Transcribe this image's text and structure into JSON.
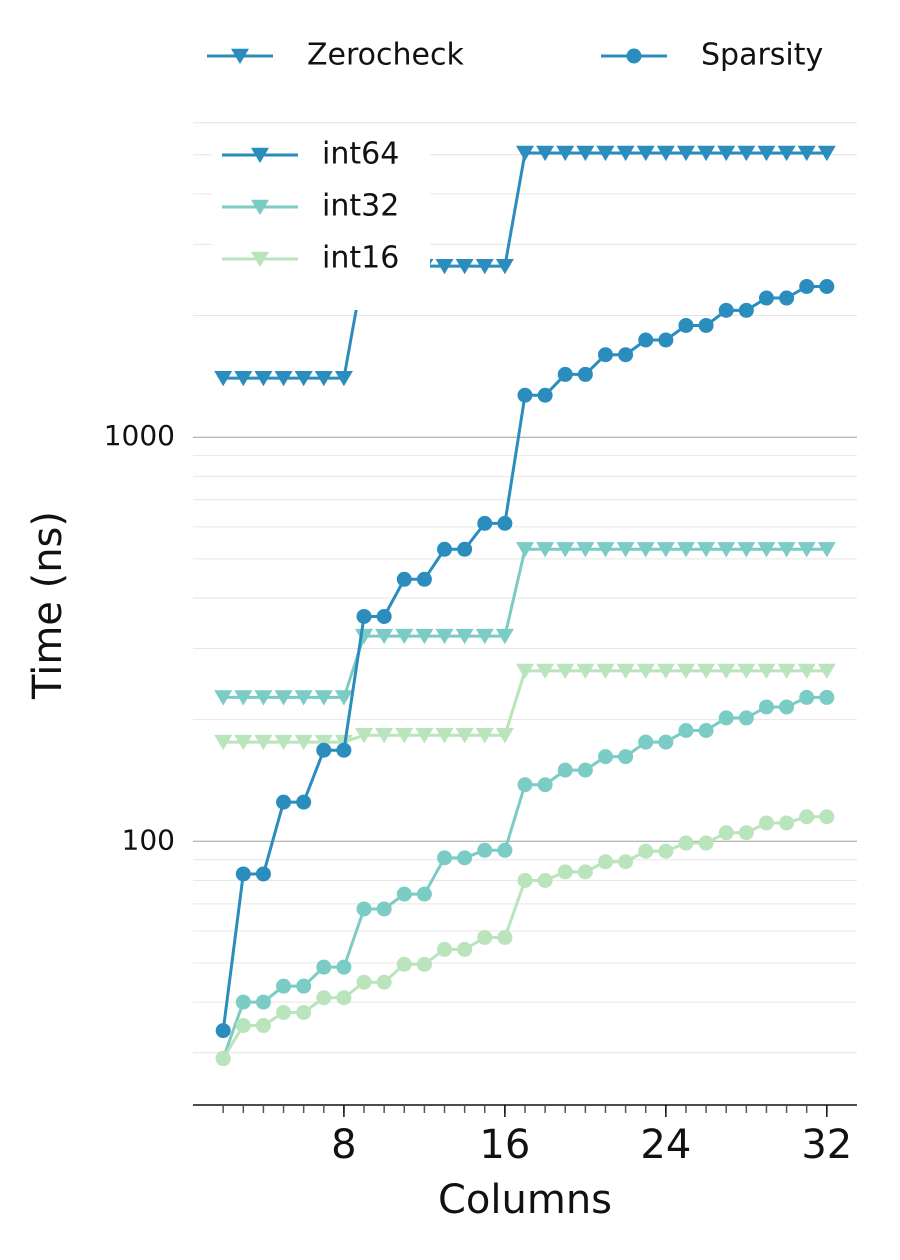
{
  "chart_data": {
    "type": "line",
    "xlabel": "Columns",
    "ylabel": "Time (ns)",
    "log_y": true,
    "x": [
      2,
      3,
      4,
      5,
      6,
      7,
      8,
      9,
      10,
      11,
      12,
      13,
      14,
      15,
      16,
      17,
      18,
      19,
      20,
      21,
      22,
      23,
      24,
      25,
      26,
      27,
      28,
      29,
      30,
      31,
      32
    ],
    "xlim": [
      0.5,
      33.5
    ],
    "xticks": [
      8,
      16,
      24,
      32
    ],
    "ylim": [
      22,
      6200
    ],
    "yticks": [
      100,
      1000
    ],
    "yminor": [
      30,
      40,
      50,
      60,
      70,
      80,
      90,
      200,
      300,
      400,
      500,
      600,
      700,
      800,
      900,
      2000,
      3000,
      4000,
      5000,
      6000
    ],
    "grid": true,
    "series": [
      {
        "name": "int64",
        "group": "Zerocheck",
        "marker": "v",
        "color": "#2b8cbe",
        "values": [
          1400,
          1400,
          1400,
          1400,
          1400,
          1400,
          1400,
          2650,
          2650,
          2650,
          2650,
          2650,
          2650,
          2650,
          2650,
          5050,
          5050,
          5050,
          5050,
          5050,
          5050,
          5050,
          5050,
          5050,
          5050,
          5050,
          5050,
          5050,
          5050,
          5050,
          5050
        ]
      },
      {
        "name": "int32",
        "group": "Zerocheck",
        "marker": "v",
        "color": "#7bccc4",
        "values": [
          227,
          227,
          227,
          227,
          227,
          227,
          227,
          322,
          322,
          322,
          322,
          322,
          322,
          322,
          322,
          528,
          528,
          528,
          528,
          528,
          528,
          528,
          528,
          528,
          528,
          528,
          528,
          528,
          528,
          528,
          528
        ]
      },
      {
        "name": "int16",
        "group": "Zerocheck",
        "marker": "v",
        "color": "#bae4bc",
        "values": [
          176,
          176,
          176,
          176,
          176,
          176,
          176,
          183,
          183,
          183,
          183,
          183,
          183,
          183,
          183,
          264,
          264,
          264,
          264,
          264,
          264,
          264,
          264,
          264,
          264,
          264,
          264,
          264,
          264,
          264,
          264
        ]
      },
      {
        "name": "int64",
        "group": "Sparsity",
        "marker": "o",
        "color": "#2b8cbe",
        "values": [
          34,
          83,
          83,
          125,
          125,
          168,
          168,
          360,
          360,
          445,
          445,
          528,
          528,
          612,
          612,
          1270,
          1270,
          1430,
          1430,
          1600,
          1600,
          1740,
          1740,
          1890,
          1890,
          2060,
          2060,
          2210,
          2210,
          2360,
          2360
        ]
      },
      {
        "name": "int32",
        "group": "Sparsity",
        "marker": "o",
        "color": "#7bccc4",
        "values": [
          29,
          40,
          40,
          43.8,
          43.8,
          48.8,
          48.8,
          68,
          68,
          74,
          74,
          91,
          91,
          95,
          95,
          138,
          138,
          150,
          150,
          162,
          162,
          176,
          176,
          188,
          188,
          202,
          202,
          215,
          215,
          227,
          227
        ]
      },
      {
        "name": "int16",
        "group": "Sparsity",
        "marker": "o",
        "color": "#bae4bc",
        "values": [
          29,
          35,
          35,
          37.7,
          37.7,
          41,
          41,
          44.8,
          44.8,
          49.6,
          49.6,
          54,
          54,
          57.8,
          57.8,
          80,
          80,
          84,
          84,
          89,
          89,
          94.5,
          94.5,
          99,
          99,
          105,
          105,
          111,
          111,
          115,
          115
        ]
      }
    ]
  }
}
